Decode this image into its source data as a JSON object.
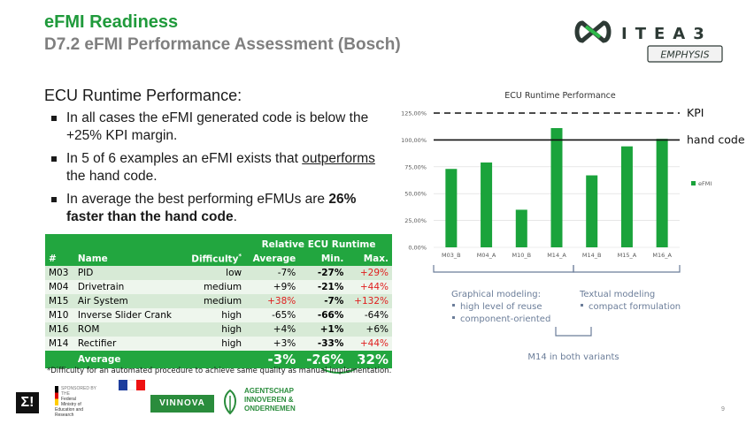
{
  "header": {
    "title": "eFMI Readiness",
    "subtitle": "D7.2 eFMI Performance Assessment (Bosch)"
  },
  "logo": {
    "itea": "ITEA3",
    "emphysis": "EMPHYSIS"
  },
  "content": {
    "heading": "ECU Runtime Performance:",
    "bullet1": "In all cases the eFMI generated code is below the +25% KPI margin.",
    "bullet2_pre": "In 5 of 6 examples an eFMI exists that ",
    "bullet2_u": "outperforms",
    "bullet2_post": " the hand code.",
    "bullet3_pre": "In average the best performing eFMUs are ",
    "bullet3_b": "26% faster than the hand code",
    "bullet3_post": "."
  },
  "table": {
    "group_header": "Relative ECU Runtime",
    "columns": [
      "#",
      "Name",
      "Difficulty",
      "Average",
      "Min.",
      "Max."
    ],
    "difficulty_mark": "*",
    "rows": [
      [
        "M03",
        "PID",
        "low",
        "-7%",
        "-27%",
        "+29%"
      ],
      [
        "M04",
        "Drivetrain",
        "medium",
        "+9%",
        "-21%",
        "+44%"
      ],
      [
        "M15",
        "Air System",
        "medium",
        "+38%",
        "-7%",
        "+132%"
      ],
      [
        "M10",
        "Inverse Slider Crank",
        "high",
        "-65%",
        "-66%",
        "-64%"
      ],
      [
        "M16",
        "ROM",
        "high",
        "+4%",
        "+1%",
        "+6%"
      ],
      [
        "M14",
        "Rectifier",
        "high",
        "+3%",
        "-33%",
        "+44%"
      ]
    ],
    "avg_label": "Average",
    "avg_values": [
      "-3%",
      "-26%",
      "32%"
    ],
    "footnote": "*Difficulty for an automated procedure to achieve same quality as manual implementation."
  },
  "chart_data": {
    "type": "bar",
    "title": "ECU Runtime Performance",
    "categories": [
      "M03_B",
      "M04_A",
      "M10_B",
      "M14_A",
      "M14_B",
      "M15_A",
      "M16_A"
    ],
    "series": [
      {
        "name": "eFMI",
        "values": [
          73,
          79,
          35,
          111,
          67,
          94,
          101
        ]
      }
    ],
    "yticks": [
      "0,00%",
      "25,00%",
      "50,00%",
      "75,00%",
      "100,00%",
      "125,00%"
    ],
    "ylim": [
      0,
      125
    ],
    "kpi_line": 125,
    "hand_code_line": 100,
    "kpi_label": "KPI",
    "hand_label": "hand code",
    "color": "#1aa33b"
  },
  "annotations": {
    "graphical_title": "Graphical modeling:",
    "graphical_items": [
      "high level of reuse",
      "component-oriented"
    ],
    "textual_title": "Textual modeling",
    "textual_items": [
      "compact formulation"
    ],
    "m14_note": "M14 in both variants"
  },
  "footer": {
    "sigma": "Σ!",
    "bmbf": "Federal Ministry of Education and Research",
    "bmbf_sub": "SPONSORED BY THE",
    "vinnova": "VINNOVA",
    "agent1": "AGENTSCHAP",
    "agent2": "INNOVEREN &",
    "agent3": "ONDERNEMEN",
    "page": "9"
  }
}
